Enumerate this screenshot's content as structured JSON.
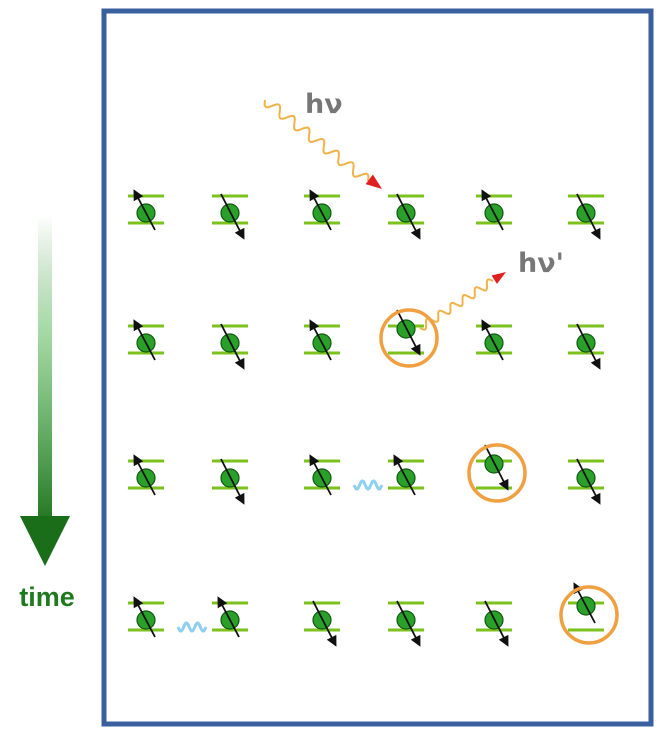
{
  "labels": {
    "time": "time",
    "incoming_photon": "hν",
    "emitted_photon": "hν'"
  },
  "colors": {
    "frame": "#3a5f9e",
    "level_line": "#7cc21d",
    "atom": "#2aa02a",
    "excitation_ring": "#f0a040",
    "photon_wave": "#f2b24a",
    "photon_head": "#e02020",
    "transfer_wave": "#8fd0f0",
    "time_arrow": "#1f7a1f"
  },
  "grid": {
    "rows": [
      {
        "spins": [
          "up",
          "down",
          "up",
          "down",
          "up",
          "down"
        ],
        "ring": null,
        "transfer_after": null
      },
      {
        "spins": [
          "up",
          "down",
          "up",
          "down",
          "up",
          "down"
        ],
        "ring": 3,
        "transfer_after": null
      },
      {
        "spins": [
          "up",
          "down",
          "up",
          "up",
          "down",
          "down"
        ],
        "ring": 4,
        "transfer_after": 2
      },
      {
        "spins": [
          "up",
          "up",
          "down",
          "down",
          "down",
          "up"
        ],
        "ring": 5,
        "transfer_after": 0
      }
    ]
  }
}
